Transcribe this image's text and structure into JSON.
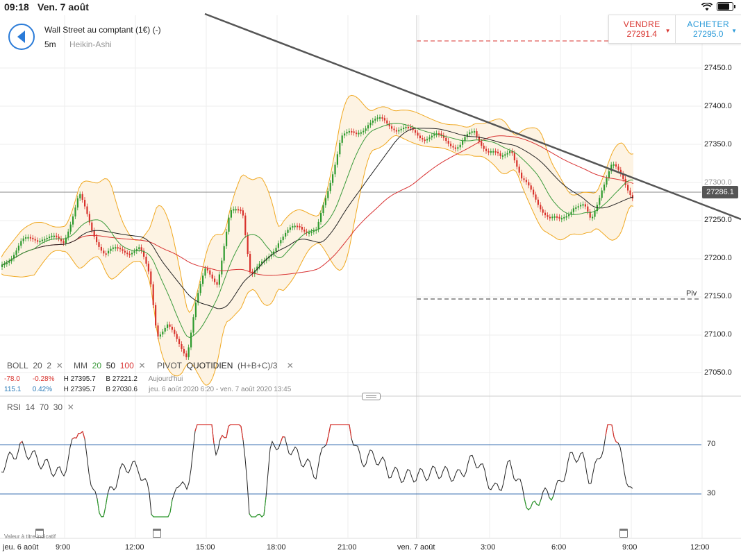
{
  "status": {
    "time": "09:18",
    "date": "Ven. 7 août"
  },
  "instrument": {
    "title": "Wall Street au comptant (1€) (-)",
    "timeframe": "5m",
    "chart_type": "Heikin-Ashi"
  },
  "trade": {
    "sell": {
      "label": "VENDRE",
      "price": "27291.4"
    },
    "buy": {
      "label": "ACHETER",
      "price": "27295.0"
    }
  },
  "price_axis": {
    "ticks": [
      "27450.0",
      "27400.0",
      "27350.0",
      "27300.0",
      "27250.0",
      "27200.0",
      "27150.0",
      "27100.0",
      "27050.0"
    ],
    "current_price": "27286.1",
    "pivot_label": "Piv"
  },
  "time_axis": {
    "ticks": [
      "jeu. 6 août",
      "9:00",
      "12:00",
      "15:00",
      "18:00",
      "21:00",
      "ven. 7 août",
      "3:00",
      "6:00",
      "9:00",
      "12:00"
    ]
  },
  "indicators": {
    "boll": {
      "name": "BOLL",
      "p1": "20",
      "p2": "2"
    },
    "mm": {
      "name": "MM",
      "p1": "20",
      "p2": "50",
      "p3": "100"
    },
    "pivot": {
      "name": "PIVOT",
      "p1": "QUOTIDIEN",
      "p2": "(H+B+C)/3"
    },
    "rsi": {
      "name": "RSI",
      "p1": "14",
      "p2": "70",
      "p3": "30",
      "upper": "70",
      "lower": "30"
    }
  },
  "stats": {
    "row1": {
      "change": "-78.0",
      "pct": "-0.28%",
      "high": "H 27395.7",
      "low": "B 27221.2",
      "period": "Aujourd'hui"
    },
    "row2": {
      "change": "115.1",
      "pct": "0.42%",
      "high": "H 27395.7",
      "low": "B 27030.6",
      "period": "jeu. 6 août 2020 6:20 - ven. 7 août 2020 13:45"
    }
  },
  "footer_note": "Valeur à titre indicatif",
  "colors": {
    "up": "#2e9a2e",
    "down": "#d8322c",
    "accent": "#2a7bd8",
    "band": "#f0a820",
    "ma20": "#3a9a3a",
    "ma50": "#222222",
    "ma100": "#d83030"
  },
  "icons": {
    "back": "back-arrow-icon",
    "wifi": "wifi-icon",
    "battery": "battery-icon",
    "close": "close-icon",
    "calendar": "calendar-icon",
    "splitter": "splitter-icon"
  }
}
